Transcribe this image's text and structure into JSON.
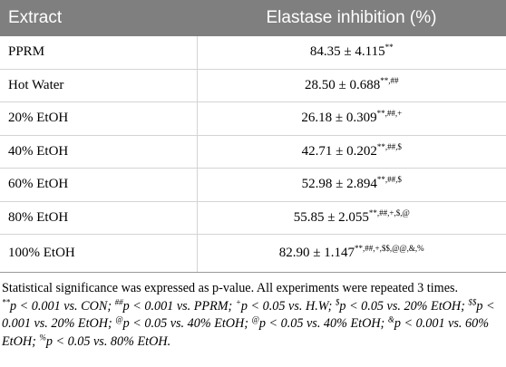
{
  "table": {
    "headers": [
      "Extract",
      "Elastase inhibition (%)"
    ],
    "rows": [
      {
        "extract": "PPRM",
        "value": "84.35 ± 4.115",
        "marks": "**"
      },
      {
        "extract": "Hot Water",
        "value": "28.50 ± 0.688",
        "marks": "**,##"
      },
      {
        "extract": "20% EtOH",
        "value": "26.18 ± 0.309",
        "marks": "**,##,+"
      },
      {
        "extract": "40% EtOH",
        "value": "42.71 ± 0.202",
        "marks": "**,##,$"
      },
      {
        "extract": "60% EtOH",
        "value": "52.98 ± 2.894",
        "marks": "**,##,$"
      },
      {
        "extract": "80% EtOH",
        "value": "55.85 ± 2.055",
        "marks": "**,##,+,$,@"
      },
      {
        "extract": "100% EtOH",
        "value": "82.90 ± 1.147",
        "marks": "**,##,+,$$,@@,&,%"
      }
    ]
  },
  "footnote": {
    "line1": "Statistical significance was expressed as p-value. All experiments were repeated 3 times.",
    "t1": "**",
    "t2": "p < 0.001 vs. CON; ",
    "t3": "##",
    "t4": "p < 0.001 vs. PPRM; ",
    "t5": "+",
    "t6": "p < 0.05 vs. H.W; ",
    "t7": "$",
    "t8": "p < 0.05 vs. 20% EtOH; ",
    "t9": "$$",
    "t10": "p < 0.001 vs. 20% EtOH; ",
    "t11": "@",
    "t12": "p < 0.05 vs. 40% EtOH; ",
    "t13": "@",
    "t14": "p < 0.05 vs. 40% EtOH; ",
    "t15": "&",
    "t16": "p < 0.001 vs. 60% EtOH; ",
    "t17": "%",
    "t18": "p < 0.05 vs. 80% EtOH."
  }
}
